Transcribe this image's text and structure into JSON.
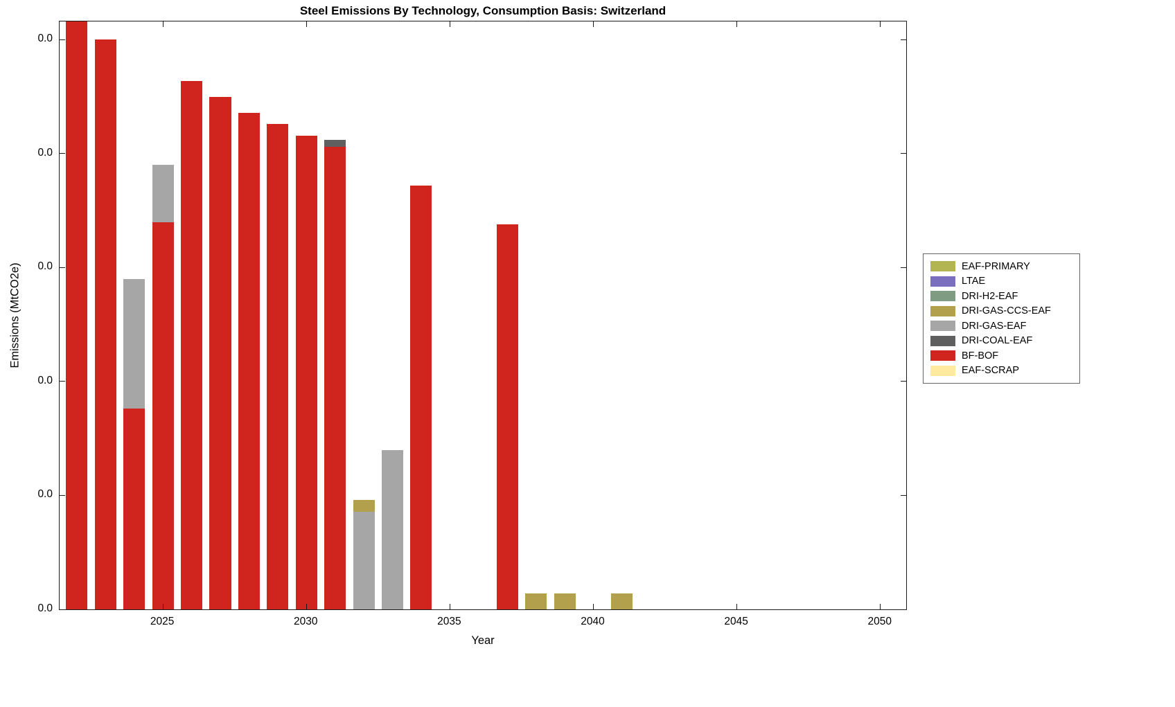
{
  "chart_data": {
    "type": "bar",
    "stacked": true,
    "title": "Steel Emissions By Technology, Consumption Basis: Switzerland",
    "xlabel": "Year",
    "ylabel": "Emissions (MtCO2e)",
    "grid": false,
    "legend_position": "right-outside",
    "x": [
      2022,
      2023,
      2024,
      2025,
      2026,
      2027,
      2028,
      2029,
      2030,
      2031,
      2032,
      2033,
      2034,
      2035,
      2036,
      2037,
      2038,
      2039,
      2040,
      2041,
      2042,
      2043,
      2044,
      2045,
      2046,
      2047,
      2048,
      2049,
      2050
    ],
    "xlim": [
      2021.4,
      2050.9
    ],
    "ylim": [
      0,
      0.0258
    ],
    "xticks": [
      2025,
      2030,
      2035,
      2040,
      2045,
      2050
    ],
    "yticks": [
      0,
      0.005,
      0.01,
      0.015,
      0.02,
      0.025
    ],
    "ytick_label": "0.0",
    "bar_width": 0.75,
    "series": [
      {
        "name": "EAF-SCRAP",
        "color": "#ffeaa0",
        "values": [
          0,
          0,
          0,
          0,
          0,
          0,
          0,
          0,
          0,
          0,
          0,
          0,
          0,
          0,
          0,
          0,
          0,
          0,
          0,
          0,
          0,
          0,
          0,
          0,
          0,
          0,
          0,
          0,
          0
        ]
      },
      {
        "name": "BF-BOF",
        "color": "#d0241f",
        "values": [
          0.0258,
          0.025,
          0.0088,
          0.017,
          0.0232,
          0.0225,
          0.0218,
          0.0213,
          0.0208,
          0.0203,
          0,
          0,
          0.0186,
          0,
          0,
          0.0169,
          0,
          0,
          0,
          0,
          0,
          0,
          0,
          0,
          0,
          0,
          0,
          0,
          0
        ]
      },
      {
        "name": "DRI-COAL-EAF",
        "color": "#5f5f5f",
        "values": [
          0,
          0,
          0,
          0,
          0,
          0,
          0,
          0,
          0,
          0.0003,
          0,
          0,
          0,
          0,
          0,
          0,
          0,
          0,
          0,
          0,
          0,
          0,
          0,
          0,
          0,
          0,
          0,
          0,
          0
        ]
      },
      {
        "name": "DRI-GAS-EAF",
        "color": "#a6a6a6",
        "values": [
          0,
          0,
          0.0057,
          0.0025,
          0,
          0,
          0,
          0,
          0,
          0,
          0.0043,
          0.007,
          0,
          0,
          0,
          0,
          0,
          0,
          0,
          0,
          0,
          0,
          0,
          0,
          0,
          0,
          0,
          0,
          0
        ]
      },
      {
        "name": "DRI-GAS-CCS-EAF",
        "color": "#b3a04c",
        "values": [
          0,
          0,
          0,
          0,
          0,
          0,
          0,
          0,
          0,
          0,
          0.0005,
          0,
          0,
          0,
          0,
          0,
          0.0007,
          0.0007,
          0,
          0.0007,
          0,
          0,
          0,
          0,
          0,
          0,
          0,
          0,
          0
        ]
      },
      {
        "name": "DRI-H2-EAF",
        "color": "#7f9c83",
        "values": [
          0,
          0,
          0,
          0,
          0,
          0,
          0,
          0,
          0,
          0,
          0,
          0,
          0,
          0,
          0,
          0,
          0,
          0,
          0,
          0,
          0,
          0,
          0,
          0,
          0,
          0,
          0,
          0,
          0
        ]
      },
      {
        "name": "LTAE",
        "color": "#7a6fbe",
        "values": [
          0,
          0,
          0,
          0,
          0,
          0,
          0,
          0,
          0,
          0,
          0,
          0,
          0,
          0,
          0,
          0,
          0,
          0,
          0,
          0,
          0,
          0,
          0,
          0,
          0,
          0,
          0,
          0,
          0
        ]
      },
      {
        "name": "EAF-PRIMARY",
        "color": "#b2b552",
        "values": [
          0,
          0,
          0,
          0,
          0,
          0,
          0,
          0,
          0,
          0,
          0,
          0,
          0,
          0,
          0,
          0,
          0,
          0,
          0,
          0,
          0,
          0,
          0,
          0,
          0,
          0,
          0,
          0,
          0
        ]
      }
    ],
    "legend": [
      "EAF-PRIMARY",
      "LTAE",
      "DRI-H2-EAF",
      "DRI-GAS-CCS-EAF",
      "DRI-GAS-EAF",
      "DRI-COAL-EAF",
      "BF-BOF",
      "EAF-SCRAP"
    ]
  }
}
